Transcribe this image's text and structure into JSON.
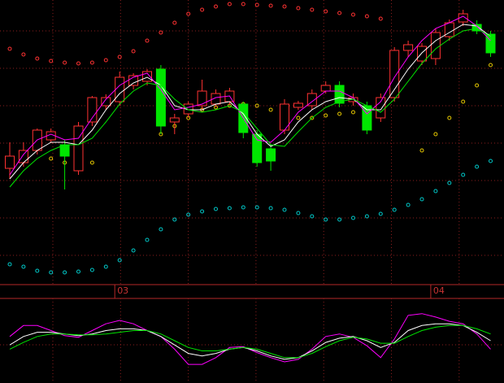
{
  "chart_data": [
    {
      "type": "candlestick",
      "categories": [
        null,
        null,
        null,
        null,
        null,
        null,
        null,
        null,
        "03",
        null,
        null,
        null,
        null,
        null,
        null,
        null,
        null,
        null,
        null,
        null,
        null,
        null,
        null,
        null,
        null,
        null,
        null,
        null,
        null,
        null,
        null,
        "04",
        null,
        null,
        null,
        null
      ],
      "open": [
        143,
        150,
        165,
        178,
        172,
        140,
        200,
        220,
        225,
        245,
        250,
        265,
        200,
        210,
        220,
        222,
        225,
        222,
        185,
        167,
        190,
        218,
        220,
        238,
        245,
        225,
        220,
        205,
        230,
        288,
        275,
        278,
        305,
        323,
        320,
        308
      ],
      "close": [
        158,
        165,
        190,
        188,
        158,
        195,
        230,
        230,
        255,
        257,
        262,
        195,
        205,
        222,
        238,
        235,
        238,
        187,
        150,
        152,
        222,
        223,
        235,
        245,
        223,
        230,
        190,
        230,
        288,
        295,
        293,
        310,
        322,
        333,
        312,
        285
      ],
      "high": [
        175,
        175,
        192,
        192,
        178,
        200,
        232,
        234,
        262,
        260,
        265,
        270,
        210,
        225,
        252,
        240,
        242,
        225,
        190,
        172,
        228,
        226,
        240,
        250,
        250,
        235,
        225,
        235,
        292,
        300,
        297,
        315,
        326,
        338,
        325,
        312
      ],
      "low": [
        130,
        145,
        160,
        174,
        117,
        135,
        195,
        215,
        220,
        240,
        245,
        185,
        185,
        205,
        215,
        218,
        220,
        180,
        145,
        140,
        185,
        215,
        215,
        235,
        218,
        220,
        185,
        200,
        225,
        280,
        270,
        270,
        300,
        318,
        308,
        280
      ],
      "up_color": "#ff3232",
      "down_color": "#00e600",
      "lines": [
        {
          "color": "#ffffff",
          "values": [
            130,
            150,
            165,
            175,
            175,
            172,
            190,
            215,
            235,
            248,
            255,
            245,
            220,
            215,
            215,
            222,
            225,
            210,
            185,
            170,
            178,
            200,
            215,
            225,
            230,
            228,
            215,
            215,
            240,
            265,
            285,
            300,
            310,
            320,
            318,
            305
          ]
        },
        {
          "color": "#ff00ff",
          "values": [
            135,
            160,
            178,
            185,
            178,
            180,
            205,
            228,
            245,
            255,
            260,
            240,
            215,
            218,
            222,
            230,
            232,
            205,
            178,
            175,
            190,
            212,
            225,
            238,
            238,
            230,
            210,
            225,
            255,
            280,
            300,
            315,
            322,
            330,
            318,
            300
          ]
        },
        {
          "color": "#00e600",
          "values": [
            120,
            140,
            155,
            165,
            172,
            172,
            180,
            200,
            222,
            238,
            248,
            245,
            228,
            215,
            212,
            215,
            220,
            212,
            192,
            172,
            170,
            188,
            205,
            218,
            225,
            228,
            220,
            212,
            228,
            250,
            272,
            290,
            302,
            312,
            315,
            305
          ]
        }
      ],
      "dots": [
        {
          "color": "#ff3232",
          "values": [
            290,
            283,
            278,
            275,
            273,
            272,
            273,
            276,
            280,
            287,
            300,
            310,
            322,
            333,
            338,
            342,
            345,
            345,
            344,
            343,
            342,
            340,
            338,
            336,
            334,
            332,
            330,
            327,
            null,
            null,
            null,
            null,
            null,
            null,
            null,
            null
          ]
        },
        {
          "color": "#e6c800",
          "values": [
            null,
            null,
            null,
            155,
            150,
            148,
            150,
            null,
            null,
            null,
            null,
            185,
            195,
            205,
            215,
            218,
            220,
            222,
            220,
            215,
            210,
            205,
            205,
            208,
            210,
            212,
            215,
            218,
            null,
            null,
            165,
            185,
            205,
            225,
            245,
            270
          ]
        },
        {
          "color": "#00c8c8",
          "values": [
            25,
            22,
            17,
            15,
            15,
            16,
            18,
            22,
            30,
            42,
            55,
            68,
            80,
            86,
            90,
            93,
            94,
            95,
            95,
            94,
            92,
            88,
            84,
            80,
            80,
            82,
            84,
            87,
            92,
            98,
            105,
            115,
            125,
            135,
            145,
            152
          ]
        }
      ],
      "ylim": [
        0,
        350
      ]
    },
    {
      "type": "line",
      "series": [
        {
          "color": "#ff00ff",
          "values": [
            55,
            68,
            68,
            62,
            56,
            54,
            62,
            70,
            74,
            70,
            62,
            55,
            40,
            22,
            22,
            30,
            42,
            43,
            36,
            30,
            25,
            28,
            40,
            55,
            58,
            54,
            44,
            30,
            52,
            80,
            82,
            78,
            73,
            70,
            58,
            40
          ]
        },
        {
          "color": "#ffffff",
          "values": [
            45,
            55,
            60,
            60,
            58,
            56,
            58,
            62,
            64,
            64,
            62,
            55,
            45,
            35,
            32,
            35,
            40,
            42,
            38,
            32,
            28,
            30,
            38,
            48,
            53,
            55,
            50,
            42,
            48,
            62,
            68,
            70,
            70,
            68,
            60,
            50
          ]
        },
        {
          "color": "#00e600",
          "values": [
            40,
            48,
            55,
            58,
            58,
            57,
            57,
            58,
            60,
            62,
            62,
            58,
            50,
            42,
            38,
            38,
            40,
            42,
            40,
            35,
            30,
            30,
            35,
            43,
            50,
            54,
            52,
            47,
            47,
            55,
            62,
            66,
            68,
            68,
            64,
            58
          ]
        }
      ],
      "ylim": [
        0,
        100
      ]
    }
  ]
}
